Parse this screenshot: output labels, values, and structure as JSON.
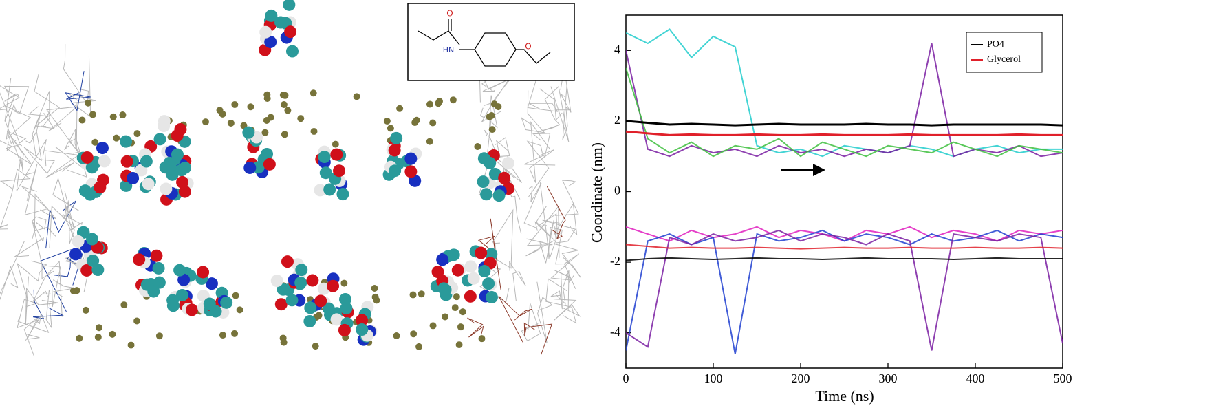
{
  "inset": {
    "labels": [
      "O",
      "HN",
      "O"
    ]
  },
  "chart_data": {
    "type": "line",
    "xlabel": "Time (ns)",
    "ylabel": "Coordinate (nm)",
    "x": [
      0,
      25,
      50,
      75,
      100,
      125,
      150,
      175,
      200,
      225,
      250,
      275,
      300,
      325,
      350,
      375,
      400,
      425,
      450,
      475,
      500
    ],
    "xlim": [
      0,
      500
    ],
    "xticks": [
      0,
      100,
      200,
      300,
      400,
      500
    ],
    "ylim": [
      -5,
      5
    ],
    "yticks": [
      -4,
      -2,
      0,
      2,
      4
    ],
    "legend": "upper right",
    "series": [
      {
        "color": "#22cccc",
        "values": [
          4.5,
          4.2,
          4.6,
          3.8,
          4.4,
          4.1,
          1.3,
          1.1,
          1.2,
          1.0,
          1.3,
          1.2,
          1.1,
          1.3,
          1.2,
          1.0,
          1.2,
          1.3,
          1.1,
          1.2,
          1.2
        ]
      },
      {
        "color": "#7a1fa2",
        "values": [
          4.0,
          1.2,
          1.0,
          1.3,
          1.1,
          1.2,
          1.0,
          1.3,
          1.1,
          1.2,
          1.0,
          1.2,
          1.1,
          1.3,
          4.2,
          1.0,
          1.2,
          1.1,
          1.3,
          1.0,
          1.1
        ]
      },
      {
        "color": "#40c040",
        "values": [
          3.5,
          1.5,
          1.1,
          1.4,
          1.0,
          1.3,
          1.2,
          1.5,
          1.0,
          1.4,
          1.2,
          1.0,
          1.3,
          1.2,
          1.1,
          1.4,
          1.2,
          1.0,
          1.3,
          1.2,
          1.1
        ]
      },
      {
        "color": "#e020c0",
        "values": [
          -1.0,
          -1.2,
          -1.4,
          -1.1,
          -1.3,
          -1.2,
          -1.0,
          -1.3,
          -1.1,
          -1.2,
          -1.4,
          -1.1,
          -1.2,
          -1.0,
          -1.3,
          -1.1,
          -1.2,
          -1.4,
          -1.1,
          -1.2,
          -1.1
        ]
      },
      {
        "color": "#2040d0",
        "values": [
          -4.5,
          -1.4,
          -1.2,
          -1.5,
          -1.3,
          -4.6,
          -1.2,
          -1.4,
          -1.3,
          -1.1,
          -1.4,
          -1.2,
          -1.3,
          -1.5,
          -1.2,
          -1.4,
          -1.3,
          -1.1,
          -1.4,
          -1.2,
          -1.3
        ]
      },
      {
        "color": "#7a1fa2",
        "values": [
          -4.0,
          -4.4,
          -1.3,
          -1.5,
          -1.2,
          -1.4,
          -1.3,
          -1.1,
          -1.4,
          -1.2,
          -1.3,
          -1.5,
          -1.2,
          -1.4,
          -4.5,
          -1.2,
          -1.3,
          -1.4,
          -1.2,
          -1.3,
          -4.3
        ]
      },
      {
        "name": "PO4",
        "color": "#000000",
        "values": [
          2.0,
          1.95,
          1.9,
          1.92,
          1.9,
          1.88,
          1.9,
          1.92,
          1.9,
          1.9,
          1.9,
          1.92,
          1.9,
          1.9,
          1.88,
          1.9,
          1.9,
          1.9,
          1.9,
          1.9,
          1.88
        ]
      },
      {
        "color": "#000000",
        "values": [
          -1.95,
          -1.9,
          -1.88,
          -1.9,
          -1.92,
          -1.9,
          -1.88,
          -1.9,
          -1.9,
          -1.92,
          -1.9,
          -1.88,
          -1.9,
          -1.9,
          -1.9,
          -1.92,
          -1.9,
          -1.88,
          -1.9,
          -1.9,
          -1.9
        ]
      },
      {
        "name": "Glycerol",
        "color": "#e0202a",
        "values": [
          1.7,
          1.65,
          1.6,
          1.62,
          1.6,
          1.6,
          1.62,
          1.6,
          1.6,
          1.62,
          1.6,
          1.6,
          1.6,
          1.62,
          1.6,
          1.6,
          1.6,
          1.6,
          1.62,
          1.6,
          1.6
        ]
      },
      {
        "color": "#e0202a",
        "values": [
          -1.5,
          -1.55,
          -1.6,
          -1.58,
          -1.6,
          -1.6,
          -1.58,
          -1.6,
          -1.62,
          -1.6,
          -1.58,
          -1.6,
          -1.6,
          -1.58,
          -1.6,
          -1.6,
          -1.58,
          -1.6,
          -1.6,
          -1.58,
          -1.6
        ]
      }
    ]
  }
}
